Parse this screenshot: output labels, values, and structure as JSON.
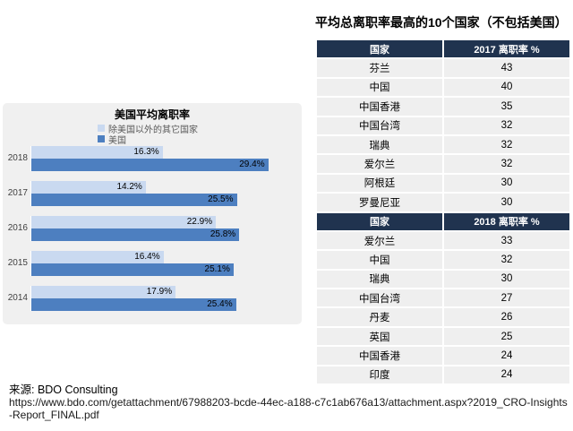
{
  "right_panel": {
    "title": "平均总离职率最高的10个国家（不包括美国）",
    "tables": [
      {
        "columns": [
          "国家",
          "2017 离职率 %"
        ],
        "rows": [
          [
            "芬兰",
            "43"
          ],
          [
            "中国",
            "40"
          ],
          [
            "中国香港",
            "35"
          ],
          [
            "中国台湾",
            "32"
          ],
          [
            "瑞典",
            "32"
          ],
          [
            "爱尔兰",
            "32"
          ],
          [
            "阿根廷",
            "30"
          ],
          [
            "罗曼尼亚",
            "30"
          ]
        ]
      },
      {
        "columns": [
          "国家",
          "2018 离职率 %"
        ],
        "rows": [
          [
            "爱尔兰",
            "33"
          ],
          [
            "中国",
            "32"
          ],
          [
            "瑞典",
            "30"
          ],
          [
            "中国台湾",
            "27"
          ],
          [
            "丹麦",
            "26"
          ],
          [
            "英国",
            "25"
          ],
          [
            "中国香港",
            "24"
          ],
          [
            "印度",
            "24"
          ]
        ]
      }
    ]
  },
  "chart_data": {
    "type": "bar",
    "orientation": "horizontal",
    "title": "美国平均离职率",
    "categories": [
      "2018",
      "2017",
      "2016",
      "2015",
      "2014"
    ],
    "series": [
      {
        "name": "除美国以外的其它国家",
        "color": "#c9d9f0",
        "values": [
          16.3,
          14.2,
          22.9,
          16.4,
          17.9
        ]
      },
      {
        "name": "美国",
        "color": "#4d7fc0",
        "values": [
          29.4,
          25.5,
          25.8,
          25.1,
          25.4
        ]
      }
    ],
    "value_suffix": "%",
    "xlim": [
      0,
      30
    ],
    "data_labels": "inside-end",
    "legend_position": "top",
    "grid": false
  },
  "source": {
    "label": "来源: BDO Consulting",
    "url": "https://www.bdo.com/getattachment/67988203-bcde-44ec-a188-c7c1ab676a13/attachment.aspx?2019_CRO-Insights-Report_FINAL.pdf"
  },
  "colors": {
    "table_header_bg": "#20334f",
    "table_row_bg": "#efefef",
    "panel_bg": "#f0f0f0",
    "bar_other_countries": "#c9d9f0",
    "bar_us": "#4d7fc0"
  }
}
